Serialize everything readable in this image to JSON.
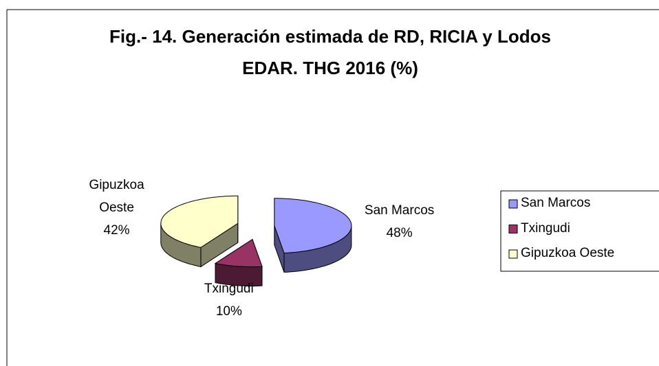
{
  "chart_data": {
    "type": "pie",
    "title": "Fig.- 14. Generación estimada de RD, RICIA y Lodos EDAR. THG 2016 (%)",
    "categories": [
      "San Marcos",
      "Txingudi",
      "Gipuzkoa Oeste"
    ],
    "values": [
      48,
      10,
      42
    ],
    "value_labels": [
      "48%",
      "10%",
      "42%"
    ],
    "colors": [
      "#9999ff",
      "#993366",
      "#ffffcc"
    ],
    "legend": "right"
  }
}
